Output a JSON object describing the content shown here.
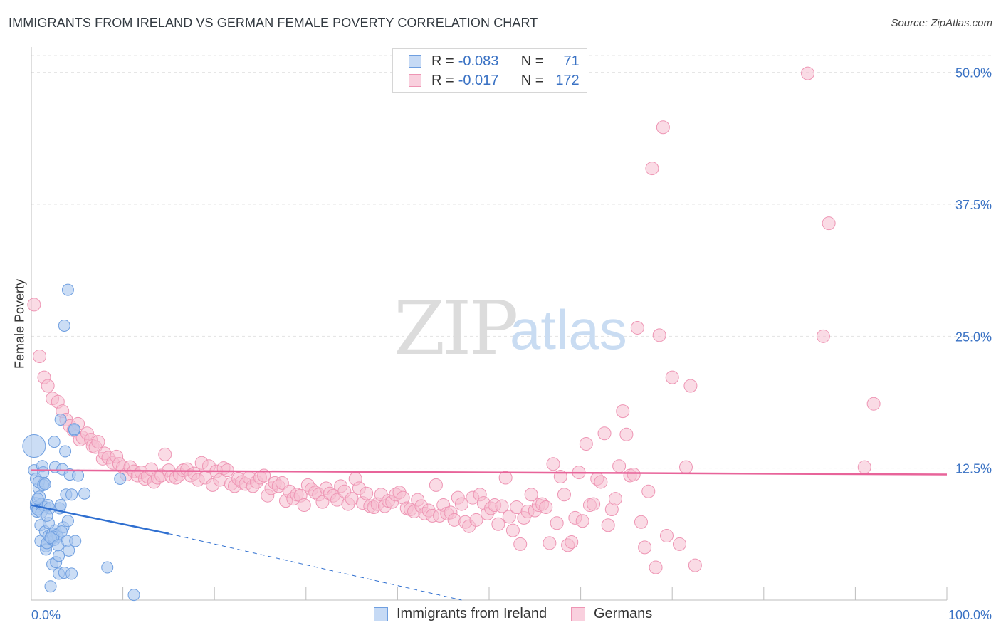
{
  "header": {
    "title": "IMMIGRANTS FROM IRELAND VS GERMAN FEMALE POVERTY CORRELATION CHART",
    "source": "Source: ZipAtlas.com"
  },
  "legend": {
    "series1": {
      "r_label": "R =",
      "r_value": "-0.083",
      "n_label": "N =",
      "n_value": "71"
    },
    "series2": {
      "r_label": "R =",
      "r_value": "-0.017",
      "n_label": "N =",
      "n_value": "172"
    }
  },
  "watermark": {
    "zip": "ZIP",
    "atlas": "atlas"
  },
  "colors": {
    "blue_fill": "#a9c7ef",
    "blue_stroke": "#6f9fe0",
    "blue_line": "#2f6fd0",
    "pink_fill": "#f6bdd0",
    "pink_stroke": "#ee95b4",
    "pink_line": "#e8649a",
    "axis_text": "#3a72c4",
    "grid": "#e3e3e3"
  },
  "chart_data": {
    "type": "scatter",
    "title": "IMMIGRANTS FROM IRELAND VS GERMAN FEMALE POVERTY CORRELATION CHART",
    "xlabel": "",
    "ylabel": "Female Poverty",
    "xlim": [
      0,
      100
    ],
    "ylim": [
      0,
      52
    ],
    "x_tick_labels": [
      "0.0%",
      "100.0%"
    ],
    "y_ticks": [
      12.5,
      25.0,
      37.5,
      50.0
    ],
    "y_tick_labels": [
      "12.5%",
      "25.0%",
      "37.5%",
      "50.0%"
    ],
    "grid": true,
    "legend_position": "top-center",
    "series": [
      {
        "name": "Immigrants from Ireland",
        "trend": {
          "x": [
            0,
            15
          ],
          "y": [
            9.0,
            6.3
          ],
          "dashed_to": [
            47,
            0.0
          ]
        },
        "points": [
          [
            0.3,
            14.6
          ],
          [
            0.3,
            12.3
          ],
          [
            0.5,
            11.5
          ],
          [
            0.5,
            9.2
          ],
          [
            0.5,
            8.8
          ],
          [
            0.6,
            8.4
          ],
          [
            0.7,
            8.6
          ],
          [
            0.8,
            10.6
          ],
          [
            0.9,
            9.8
          ],
          [
            1.0,
            7.1
          ],
          [
            1.0,
            5.6
          ],
          [
            1.1,
            9.1
          ],
          [
            1.2,
            12.7
          ],
          [
            1.3,
            12.1
          ],
          [
            1.4,
            11.1
          ],
          [
            1.5,
            8.8
          ],
          [
            1.5,
            6.5
          ],
          [
            1.6,
            5.1
          ],
          [
            1.6,
            4.8
          ],
          [
            1.7,
            5.4
          ],
          [
            1.8,
            9.0
          ],
          [
            1.9,
            6.1
          ],
          [
            2.0,
            8.7
          ],
          [
            2.1,
            1.3
          ],
          [
            2.2,
            5.8
          ],
          [
            2.3,
            6.3
          ],
          [
            2.3,
            3.4
          ],
          [
            2.5,
            5.7
          ],
          [
            2.5,
            15.0
          ],
          [
            2.6,
            6.6
          ],
          [
            2.6,
            12.6
          ],
          [
            2.7,
            3.6
          ],
          [
            2.8,
            6.2
          ],
          [
            2.9,
            6.0
          ],
          [
            3.0,
            4.2
          ],
          [
            3.0,
            2.5
          ],
          [
            3.1,
            8.7
          ],
          [
            3.2,
            17.1
          ],
          [
            3.2,
            9.0
          ],
          [
            3.4,
            12.4
          ],
          [
            3.5,
            6.9
          ],
          [
            3.6,
            26.0
          ],
          [
            3.6,
            2.6
          ],
          [
            3.7,
            14.1
          ],
          [
            3.8,
            10.0
          ],
          [
            3.9,
            5.6
          ],
          [
            4.0,
            29.4
          ],
          [
            4.0,
            7.5
          ],
          [
            4.1,
            4.7
          ],
          [
            4.2,
            11.9
          ],
          [
            4.4,
            10.0
          ],
          [
            4.4,
            2.5
          ],
          [
            4.7,
            16.1
          ],
          [
            4.7,
            16.2
          ],
          [
            4.8,
            5.6
          ],
          [
            5.1,
            11.8
          ],
          [
            5.8,
            10.1
          ],
          [
            8.3,
            3.1
          ],
          [
            9.7,
            11.5
          ],
          [
            11.2,
            0.5
          ],
          [
            0.8,
            11.2
          ],
          [
            1.3,
            10.9
          ],
          [
            1.9,
            7.3
          ],
          [
            2.4,
            6.0
          ],
          [
            1.1,
            8.3
          ],
          [
            0.7,
            9.6
          ],
          [
            1.5,
            11.0
          ],
          [
            2.1,
            5.9
          ],
          [
            2.9,
            5.2
          ],
          [
            3.3,
            6.5
          ],
          [
            1.7,
            8.0
          ]
        ]
      },
      {
        "name": "Germans",
        "trend": {
          "x": [
            0,
            100
          ],
          "y": [
            12.3,
            11.9
          ]
        },
        "points": [
          [
            0.3,
            28.0
          ],
          [
            0.9,
            23.1
          ],
          [
            1.4,
            21.1
          ],
          [
            1.8,
            20.3
          ],
          [
            2.3,
            19.1
          ],
          [
            2.9,
            18.8
          ],
          [
            3.4,
            17.9
          ],
          [
            3.8,
            17.1
          ],
          [
            4.2,
            16.5
          ],
          [
            4.6,
            16.1
          ],
          [
            5.1,
            16.7
          ],
          [
            5.3,
            15.2
          ],
          [
            5.6,
            15.4
          ],
          [
            6.1,
            15.8
          ],
          [
            6.5,
            15.2
          ],
          [
            6.7,
            14.6
          ],
          [
            7.0,
            14.5
          ],
          [
            7.3,
            15.0
          ],
          [
            7.8,
            13.4
          ],
          [
            8.0,
            13.9
          ],
          [
            8.4,
            13.5
          ],
          [
            8.9,
            13.0
          ],
          [
            9.3,
            13.6
          ],
          [
            9.6,
            12.9
          ],
          [
            10.0,
            12.6
          ],
          [
            10.4,
            11.9
          ],
          [
            10.8,
            12.6
          ],
          [
            11.2,
            12.2
          ],
          [
            11.6,
            11.8
          ],
          [
            12.0,
            12.1
          ],
          [
            12.4,
            11.5
          ],
          [
            12.7,
            11.7
          ],
          [
            13.1,
            12.4
          ],
          [
            13.4,
            11.2
          ],
          [
            13.8,
            11.6
          ],
          [
            14.2,
            11.8
          ],
          [
            14.6,
            13.8
          ],
          [
            15.0,
            12.3
          ],
          [
            15.3,
            11.7
          ],
          [
            15.8,
            11.6
          ],
          [
            16.2,
            11.9
          ],
          [
            16.6,
            12.3
          ],
          [
            17.0,
            12.4
          ],
          [
            17.4,
            11.8
          ],
          [
            17.8,
            12.0
          ],
          [
            18.2,
            11.4
          ],
          [
            18.6,
            13.0
          ],
          [
            19.0,
            11.6
          ],
          [
            19.4,
            12.7
          ],
          [
            19.8,
            10.9
          ],
          [
            20.2,
            12.2
          ],
          [
            20.6,
            11.4
          ],
          [
            21.0,
            12.5
          ],
          [
            21.4,
            12.3
          ],
          [
            21.8,
            11.0
          ],
          [
            22.2,
            10.8
          ],
          [
            22.6,
            11.5
          ],
          [
            23.0,
            11.2
          ],
          [
            23.4,
            11.0
          ],
          [
            23.8,
            11.6
          ],
          [
            24.2,
            10.8
          ],
          [
            24.6,
            11.2
          ],
          [
            25.0,
            11.6
          ],
          [
            25.4,
            11.8
          ],
          [
            25.8,
            9.9
          ],
          [
            26.2,
            10.6
          ],
          [
            26.6,
            11.1
          ],
          [
            27.0,
            10.8
          ],
          [
            27.4,
            11.1
          ],
          [
            27.8,
            9.4
          ],
          [
            28.2,
            10.3
          ],
          [
            28.6,
            9.6
          ],
          [
            29.0,
            10.0
          ],
          [
            29.4,
            9.9
          ],
          [
            29.8,
            9.0
          ],
          [
            30.2,
            10.9
          ],
          [
            30.6,
            10.5
          ],
          [
            31.0,
            10.2
          ],
          [
            31.4,
            10.0
          ],
          [
            31.8,
            9.3
          ],
          [
            32.2,
            10.6
          ],
          [
            32.6,
            10.1
          ],
          [
            33.0,
            9.9
          ],
          [
            33.4,
            9.5
          ],
          [
            33.8,
            10.8
          ],
          [
            34.2,
            10.3
          ],
          [
            34.6,
            9.1
          ],
          [
            35.0,
            9.6
          ],
          [
            35.4,
            11.5
          ],
          [
            35.8,
            10.6
          ],
          [
            36.2,
            9.2
          ],
          [
            36.6,
            10.1
          ],
          [
            37.0,
            8.9
          ],
          [
            37.4,
            8.8
          ],
          [
            37.8,
            9.1
          ],
          [
            38.2,
            10.0
          ],
          [
            38.6,
            8.9
          ],
          [
            39.0,
            9.4
          ],
          [
            39.4,
            9.3
          ],
          [
            39.8,
            10.0
          ],
          [
            40.2,
            10.2
          ],
          [
            40.6,
            9.7
          ],
          [
            41.0,
            8.7
          ],
          [
            41.4,
            8.6
          ],
          [
            41.8,
            8.4
          ],
          [
            42.2,
            9.5
          ],
          [
            42.6,
            8.9
          ],
          [
            43.0,
            8.2
          ],
          [
            43.4,
            8.5
          ],
          [
            43.8,
            8.0
          ],
          [
            44.2,
            10.9
          ],
          [
            44.6,
            8.0
          ],
          [
            45.0,
            9.0
          ],
          [
            45.4,
            8.2
          ],
          [
            45.8,
            8.3
          ],
          [
            46.2,
            7.6
          ],
          [
            46.6,
            9.7
          ],
          [
            47.0,
            9.1
          ],
          [
            47.4,
            7.4
          ],
          [
            47.8,
            7.0
          ],
          [
            48.2,
            9.7
          ],
          [
            48.6,
            7.6
          ],
          [
            49.0,
            10.0
          ],
          [
            49.4,
            9.2
          ],
          [
            49.8,
            8.2
          ],
          [
            50.2,
            8.7
          ],
          [
            50.6,
            9.0
          ],
          [
            51.0,
            7.2
          ],
          [
            51.4,
            8.9
          ],
          [
            51.8,
            11.6
          ],
          [
            52.2,
            7.9
          ],
          [
            52.6,
            6.6
          ],
          [
            53.0,
            8.8
          ],
          [
            53.4,
            5.3
          ],
          [
            53.8,
            7.8
          ],
          [
            54.2,
            8.4
          ],
          [
            54.6,
            10.0
          ],
          [
            55.0,
            8.5
          ],
          [
            55.4,
            9.0
          ],
          [
            55.8,
            9.1
          ],
          [
            56.2,
            8.8
          ],
          [
            56.6,
            5.4
          ],
          [
            57.0,
            12.9
          ],
          [
            57.4,
            7.3
          ],
          [
            57.8,
            11.7
          ],
          [
            58.2,
            10.0
          ],
          [
            58.6,
            5.2
          ],
          [
            59.0,
            5.5
          ],
          [
            59.4,
            7.8
          ],
          [
            59.8,
            12.1
          ],
          [
            60.2,
            7.5
          ],
          [
            60.6,
            14.8
          ],
          [
            61.0,
            9.0
          ],
          [
            61.4,
            9.1
          ],
          [
            61.8,
            11.5
          ],
          [
            62.2,
            11.2
          ],
          [
            62.6,
            15.8
          ],
          [
            63.0,
            7.1
          ],
          [
            63.4,
            8.6
          ],
          [
            63.8,
            9.6
          ],
          [
            64.2,
            12.7
          ],
          [
            64.6,
            17.9
          ],
          [
            65.0,
            15.7
          ],
          [
            65.4,
            11.8
          ],
          [
            65.8,
            11.9
          ],
          [
            66.2,
            25.8
          ],
          [
            66.6,
            7.4
          ],
          [
            67.0,
            5.0
          ],
          [
            67.4,
            10.3
          ],
          [
            67.8,
            40.9
          ],
          [
            68.2,
            3.1
          ],
          [
            68.6,
            25.1
          ],
          [
            69.0,
            44.8
          ],
          [
            69.4,
            6.1
          ],
          [
            70.0,
            21.1
          ],
          [
            70.8,
            5.3
          ],
          [
            71.5,
            12.6
          ],
          [
            72.0,
            20.3
          ],
          [
            72.5,
            3.3
          ],
          [
            84.8,
            49.9
          ],
          [
            87.1,
            35.7
          ],
          [
            86.5,
            25.0
          ],
          [
            92.0,
            18.6
          ],
          [
            91.0,
            12.6
          ]
        ]
      }
    ]
  },
  "bottom_legend": {
    "item1": "Immigrants from Ireland",
    "item2": "Germans"
  }
}
